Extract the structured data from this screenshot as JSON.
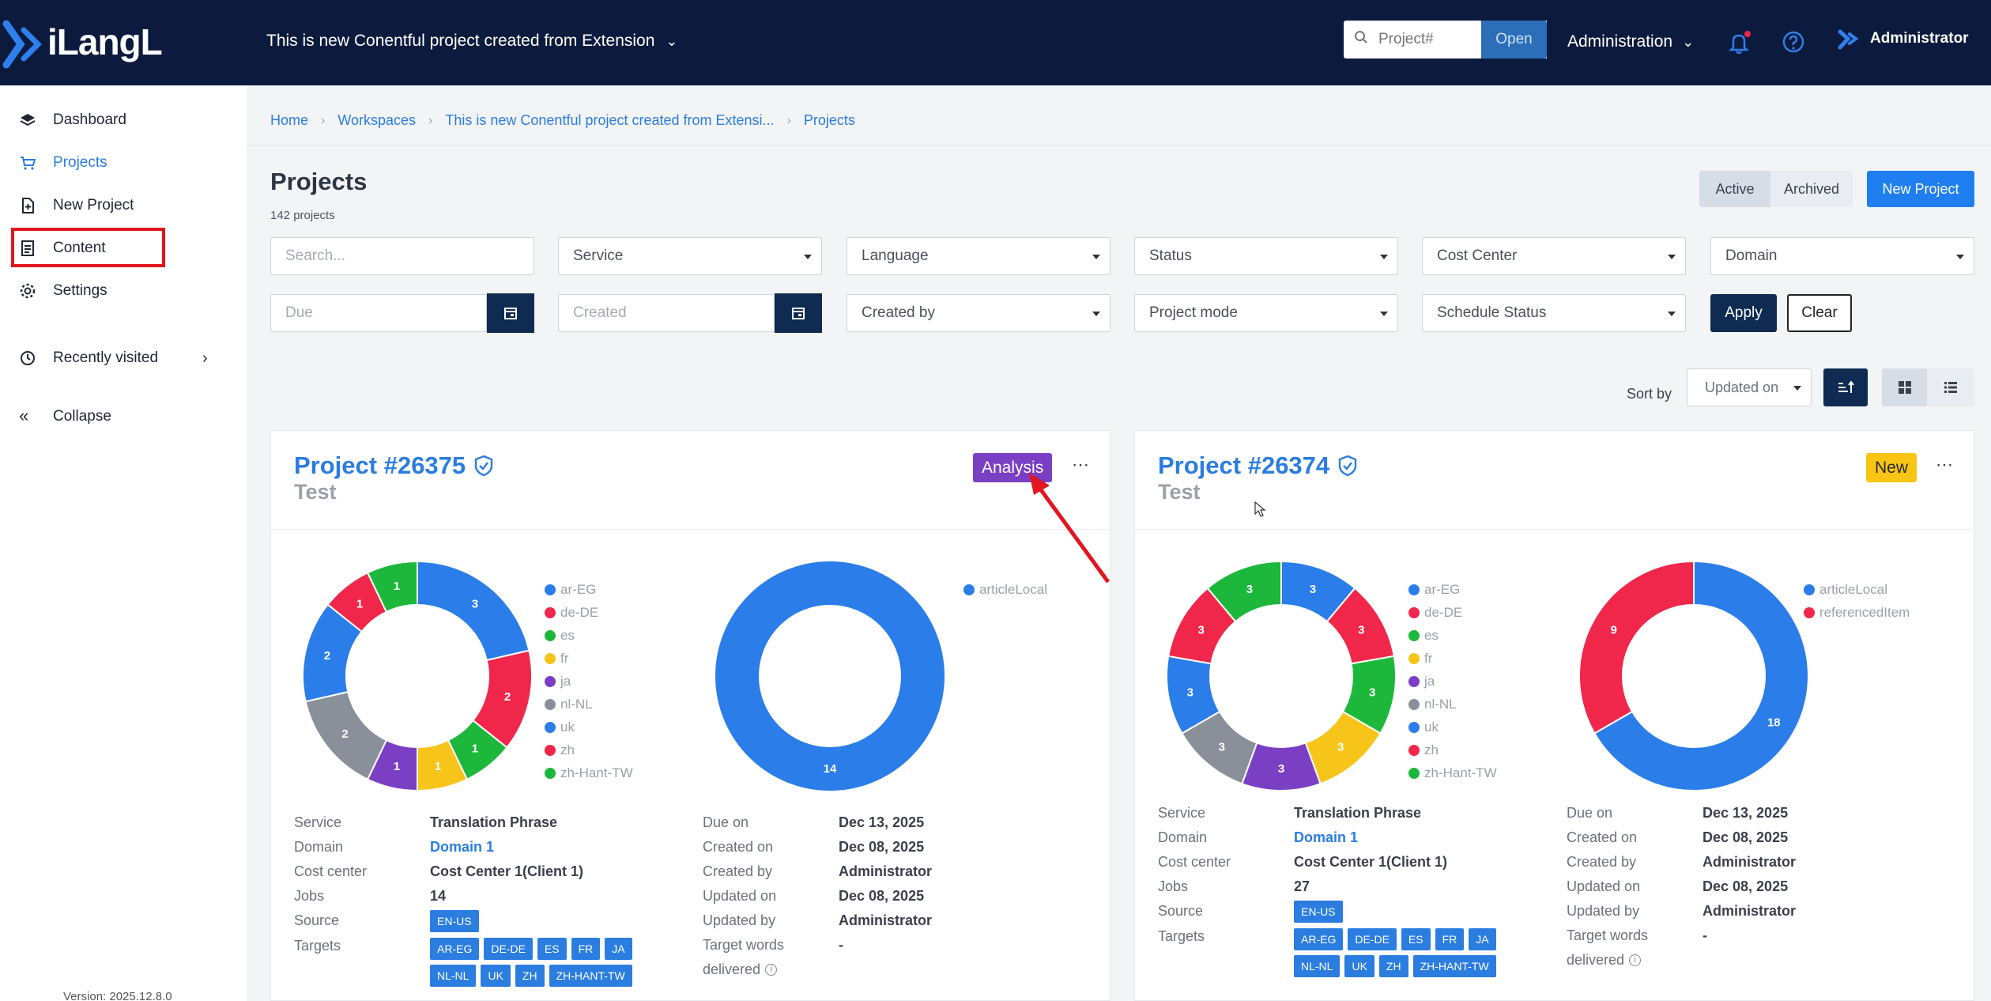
{
  "header": {
    "logo_text": "iLangL",
    "project_title": "This is new Conentful project created from Extension",
    "search_placeholder": "Project#",
    "open_label": "Open",
    "admin_menu_label": "Administration",
    "user_name": "Administrator"
  },
  "sidebar": {
    "items": [
      {
        "label": "Dashboard",
        "icon": "layers-icon"
      },
      {
        "label": "Projects",
        "icon": "cart-icon"
      },
      {
        "label": "New Project",
        "icon": "file-plus-icon"
      },
      {
        "label": "Content",
        "icon": "document-icon"
      },
      {
        "label": "Settings",
        "icon": "gear-icon"
      },
      {
        "label": "Recently visited",
        "icon": "history-icon"
      },
      {
        "label": "Collapse",
        "icon": "double-chevron-left-icon"
      }
    ],
    "active": "Projects",
    "version": "Version: 2025.12.8.0"
  },
  "breadcrumb": [
    "Home",
    "Workspaces",
    "This is new Conentful project created from Extensi...",
    "Projects"
  ],
  "page": {
    "title": "Projects",
    "count": "142 projects",
    "active_label": "Active",
    "archived_label": "Archived",
    "new_project_label": "New Project"
  },
  "filters": {
    "search_placeholder": "Search...",
    "service": "Service",
    "language": "Language",
    "status": "Status",
    "cost_center": "Cost Center",
    "domain": "Domain",
    "due_placeholder": "Due",
    "created_placeholder": "Created",
    "created_by": "Created by",
    "project_mode": "Project mode",
    "schedule_status": "Schedule Status",
    "apply_label": "Apply",
    "clear_label": "Clear"
  },
  "sort": {
    "label": "Sort by",
    "value": "Updated on"
  },
  "colors": {
    "ar-EG": "#2b7de9",
    "de-DE": "#f0274a",
    "es": "#1db83b",
    "fr": "#f7c51a",
    "ja": "#7b3fc4",
    "nl-NL": "#8a9099",
    "uk": "#2b7de9",
    "zh": "#f0274a",
    "zh-Hant-TW": "#1db83b",
    "articleLocal": "#2b7de9",
    "referencedItem": "#f0274a"
  },
  "projects": [
    {
      "title": "Project #26375",
      "subtitle": "Test",
      "status": "Analysis",
      "languages_chart": {
        "slices": [
          {
            "label": "ar-EG",
            "value": 3
          },
          {
            "label": "de-DE",
            "value": 2
          },
          {
            "label": "es",
            "value": 1
          },
          {
            "label": "fr",
            "value": 1
          },
          {
            "label": "ja",
            "value": 1
          },
          {
            "label": "nl-NL",
            "value": 2
          },
          {
            "label": "uk",
            "value": 2
          },
          {
            "label": "zh",
            "value": 1
          },
          {
            "label": "zh-Hant-TW",
            "value": 1
          }
        ]
      },
      "content_chart": {
        "slices": [
          {
            "label": "articleLocal",
            "value": 14
          }
        ]
      },
      "details_left": [
        {
          "key": "Service",
          "value": "Translation Phrase"
        },
        {
          "key": "Domain",
          "value": "Domain 1"
        },
        {
          "key": "Cost center",
          "value": "Cost Center 1(Client 1)"
        },
        {
          "key": "Jobs",
          "value": "14"
        },
        {
          "key": "Source",
          "value": ""
        },
        {
          "key": "Targets",
          "value": ""
        }
      ],
      "source_chips": [
        "EN-US"
      ],
      "target_chips": [
        "AR-EG",
        "DE-DE",
        "ES",
        "FR",
        "JA",
        "NL-NL",
        "UK",
        "ZH",
        "ZH-HANT-TW"
      ],
      "details_right": [
        {
          "key": "Due on",
          "value": "Dec 13, 2025"
        },
        {
          "key": "Created on",
          "value": "Dec 08, 2025"
        },
        {
          "key": "Created by",
          "value": "Administrator"
        },
        {
          "key": "Updated on",
          "value": "Dec 08, 2025"
        },
        {
          "key": "Updated by",
          "value": "Administrator"
        },
        {
          "key": "Target words",
          "value": "-"
        },
        {
          "key": "delivered",
          "value": ""
        }
      ]
    },
    {
      "title": "Project #26374",
      "subtitle": "Test",
      "status": "New",
      "languages_chart": {
        "slices": [
          {
            "label": "ar-EG",
            "value": 3
          },
          {
            "label": "de-DE",
            "value": 3
          },
          {
            "label": "es",
            "value": 3
          },
          {
            "label": "fr",
            "value": 3
          },
          {
            "label": "ja",
            "value": 3
          },
          {
            "label": "nl-NL",
            "value": 3
          },
          {
            "label": "uk",
            "value": 3
          },
          {
            "label": "zh",
            "value": 3
          },
          {
            "label": "zh-Hant-TW",
            "value": 3
          }
        ]
      },
      "content_chart": {
        "slices": [
          {
            "label": "articleLocal",
            "value": 18
          },
          {
            "label": "referencedItem",
            "value": 9
          }
        ]
      },
      "details_left": [
        {
          "key": "Service",
          "value": "Translation Phrase"
        },
        {
          "key": "Domain",
          "value": "Domain 1"
        },
        {
          "key": "Cost center",
          "value": "Cost Center 1(Client 1)"
        },
        {
          "key": "Jobs",
          "value": "27"
        },
        {
          "key": "Source",
          "value": ""
        },
        {
          "key": "Targets",
          "value": ""
        }
      ],
      "source_chips": [
        "EN-US"
      ],
      "target_chips": [
        "AR-EG",
        "DE-DE",
        "ES",
        "FR",
        "JA",
        "NL-NL",
        "UK",
        "ZH",
        "ZH-HANT-TW"
      ],
      "details_right": [
        {
          "key": "Due on",
          "value": "Dec 13, 2025"
        },
        {
          "key": "Created on",
          "value": "Dec 08, 2025"
        },
        {
          "key": "Created by",
          "value": "Administrator"
        },
        {
          "key": "Updated on",
          "value": "Dec 08, 2025"
        },
        {
          "key": "Updated by",
          "value": "Administrator"
        },
        {
          "key": "Target words",
          "value": "-"
        },
        {
          "key": "delivered",
          "value": ""
        }
      ]
    }
  ]
}
